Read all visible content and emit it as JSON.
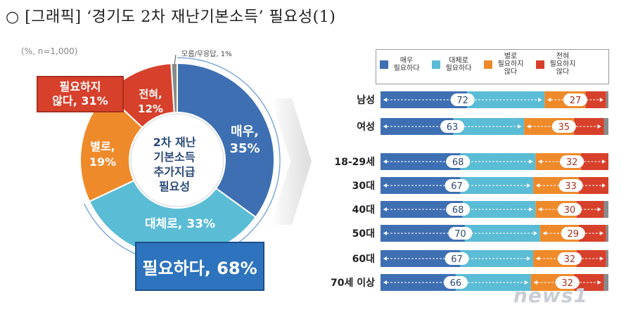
{
  "header": {
    "title": "○ [그래픽] ‘경기도 2차 재난기본소득’ 필요성(1)",
    "note": "(%, n=1,000)"
  },
  "colors": {
    "very_need": "#3e6fb3",
    "somewhat_need": "#5bbcd6",
    "not_much": "#ef8a2b",
    "not_at_all": "#d7402b",
    "dont_know": "#8a8a8a"
  },
  "chart_data": [
    {
      "type": "pie",
      "title": "2차 재난 기본소득 추가지급 필요성",
      "center_lines": [
        "2차 재난",
        "기본소득",
        "추가지급",
        "필요성"
      ],
      "slices": [
        {
          "label": "매우,",
          "value": 35
        },
        {
          "label": "대체로, 33%",
          "value": 33
        },
        {
          "label": "별로,",
          "value": 19
        },
        {
          "label": "전혀,",
          "value": 12
        },
        {
          "label": "모름/무응답, 1%",
          "value": 1
        }
      ],
      "slice_value_texts": [
        "35%",
        "",
        "19%",
        "12%",
        ""
      ],
      "groups": [
        {
          "label": "필요하다, 68%",
          "value": 68
        },
        {
          "label_lines": [
            "필요하지",
            "않다, 31%"
          ],
          "value": 31
        }
      ]
    },
    {
      "type": "bar",
      "stacked": true,
      "legend": [
        "매우 필요하다",
        "대체로 필요하다",
        "별로 필요하지 않다",
        "전혀 필요하지 않다"
      ],
      "legend_lines": [
        [
          "매우",
          "필요하다"
        ],
        [
          "대체로",
          "필요하다"
        ],
        [
          "별로",
          "필요하지",
          "않다"
        ],
        [
          "전혀",
          "필요하지",
          "않다"
        ]
      ],
      "categories": [
        "남성",
        "여성",
        "18-29세",
        "30대",
        "40대",
        "50대",
        "60대",
        "70세 이상"
      ],
      "need_totals": [
        72,
        63,
        68,
        67,
        68,
        70,
        67,
        66
      ],
      "not_need_totals": [
        27,
        35,
        32,
        33,
        30,
        29,
        32,
        32
      ],
      "series": [
        {
          "name": "매우 필요하다",
          "values": [
            38,
            32,
            35,
            35,
            36,
            37,
            35,
            33
          ]
        },
        {
          "name": "대체로 필요하다",
          "values": [
            34,
            31,
            33,
            32,
            32,
            33,
            32,
            33
          ]
        },
        {
          "name": "별로 필요하지 않다",
          "values": [
            18,
            22,
            20,
            20,
            18,
            17,
            19,
            19
          ]
        },
        {
          "name": "전혀 필요하지 않다",
          "values": [
            9,
            13,
            12,
            13,
            12,
            12,
            13,
            13
          ]
        },
        {
          "name": "모름/무응답",
          "values": [
            1,
            2,
            0,
            0,
            2,
            1,
            1,
            2
          ]
        }
      ]
    }
  ],
  "watermark": "news1"
}
